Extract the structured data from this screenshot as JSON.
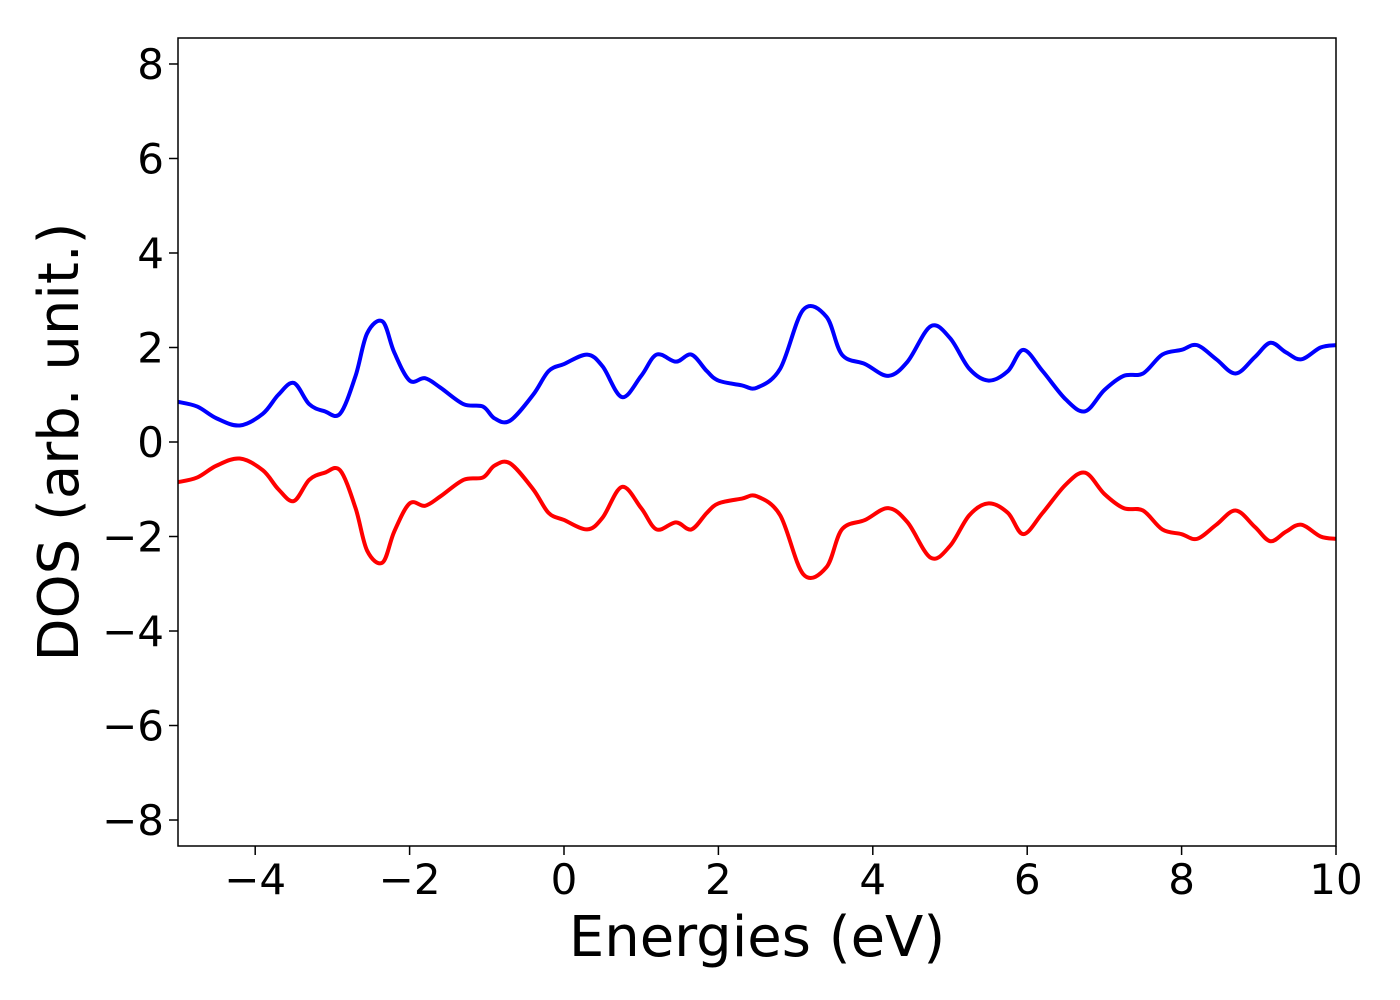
{
  "chart_data": {
    "type": "line",
    "xlabel": "Energies (eV)",
    "ylabel": "DOS (arb. unit.)",
    "xlim": [
      -5,
      10
    ],
    "ylim": [
      -8.55,
      8.55
    ],
    "xticks": [
      -4,
      -2,
      0,
      2,
      4,
      6,
      8,
      10
    ],
    "xtick_labels": [
      "−4",
      "−2",
      "0",
      "2",
      "4",
      "6",
      "8",
      "10"
    ],
    "yticks": [
      8,
      6,
      4,
      2,
      0,
      -2,
      -4,
      -6,
      -8
    ],
    "ytick_labels": [
      "8",
      "6",
      "4",
      "2",
      "0",
      "−2",
      "−4",
      "−6",
      "−8"
    ],
    "grid": false,
    "legend": "none",
    "x": [
      -5.0,
      -4.75,
      -4.5,
      -4.2,
      -3.9,
      -3.7,
      -3.5,
      -3.3,
      -3.1,
      -2.9,
      -2.7,
      -2.55,
      -2.35,
      -2.2,
      -2.0,
      -1.8,
      -1.6,
      -1.3,
      -1.05,
      -0.9,
      -0.7,
      -0.4,
      -0.2,
      0.0,
      0.3,
      0.5,
      0.75,
      1.0,
      1.2,
      1.45,
      1.65,
      1.85,
      2.0,
      2.3,
      2.5,
      2.8,
      3.1,
      3.4,
      3.6,
      3.9,
      4.2,
      4.45,
      4.75,
      5.0,
      5.25,
      5.5,
      5.75,
      5.95,
      6.2,
      6.5,
      6.75,
      7.0,
      7.25,
      7.5,
      7.75,
      8.0,
      8.2,
      8.45,
      8.7,
      8.95,
      9.15,
      9.35,
      9.55,
      9.8,
      10.0
    ],
    "series": [
      {
        "color": "#0000ff",
        "values": [
          0.85,
          0.75,
          0.5,
          0.35,
          0.6,
          1.0,
          1.25,
          0.8,
          0.65,
          0.6,
          1.4,
          2.3,
          2.55,
          1.9,
          1.3,
          1.35,
          1.15,
          0.8,
          0.75,
          0.5,
          0.45,
          1.0,
          1.5,
          1.65,
          1.85,
          1.6,
          0.95,
          1.4,
          1.85,
          1.7,
          1.85,
          1.5,
          1.3,
          1.2,
          1.15,
          1.55,
          2.8,
          2.65,
          1.85,
          1.65,
          1.4,
          1.7,
          2.45,
          2.2,
          1.55,
          1.3,
          1.5,
          1.95,
          1.5,
          0.9,
          0.65,
          1.1,
          1.4,
          1.45,
          1.85,
          1.95,
          2.05,
          1.75,
          1.45,
          1.8,
          2.1,
          1.9,
          1.75,
          2.0,
          2.05
        ]
      },
      {
        "color": "#ff0000",
        "values": [
          -0.85,
          -0.75,
          -0.5,
          -0.35,
          -0.6,
          -1.0,
          -1.25,
          -0.8,
          -0.65,
          -0.6,
          -1.4,
          -2.3,
          -2.55,
          -1.9,
          -1.3,
          -1.35,
          -1.15,
          -0.8,
          -0.75,
          -0.5,
          -0.45,
          -1.0,
          -1.5,
          -1.65,
          -1.85,
          -1.6,
          -0.95,
          -1.4,
          -1.85,
          -1.7,
          -1.85,
          -1.5,
          -1.3,
          -1.2,
          -1.15,
          -1.55,
          -2.8,
          -2.65,
          -1.85,
          -1.65,
          -1.4,
          -1.7,
          -2.45,
          -2.2,
          -1.55,
          -1.3,
          -1.5,
          -1.95,
          -1.5,
          -0.9,
          -0.65,
          -1.1,
          -1.4,
          -1.45,
          -1.85,
          -1.95,
          -2.05,
          -1.75,
          -1.45,
          -1.8,
          -2.1,
          -1.9,
          -1.75,
          -2.0,
          -2.05
        ]
      }
    ]
  }
}
